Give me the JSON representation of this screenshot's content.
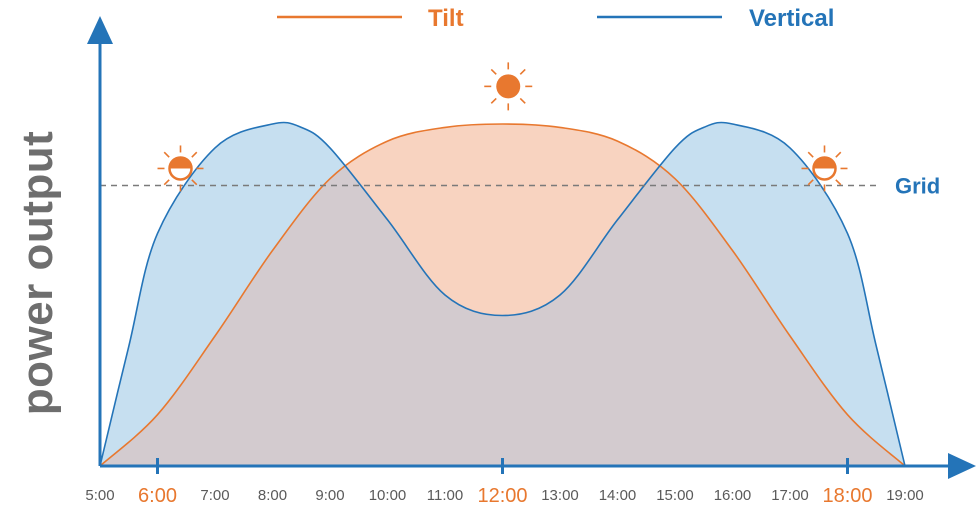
{
  "chart_data": {
    "type": "area",
    "title": "",
    "xlabel": "",
    "ylabel": "power output",
    "x_ticks": [
      "5:00",
      "6:00",
      "7:00",
      "8:00",
      "9:00",
      "10:00",
      "11:00",
      "12:00",
      "13:00",
      "14:00",
      "15:00",
      "16:00",
      "17:00",
      "18:00",
      "19:00"
    ],
    "highlighted_ticks": [
      "6:00",
      "12:00",
      "18:00"
    ],
    "xlim": [
      5,
      19
    ],
    "ylim": [
      0,
      1
    ],
    "grid": false,
    "legend_position": "top",
    "series": [
      {
        "name": "Tilt",
        "color": "#e8782f",
        "fill": "#f8d3c0",
        "x": [
          5,
          6,
          7,
          8,
          9,
          10,
          11,
          12,
          13,
          14,
          15,
          16,
          17,
          18,
          19
        ],
        "values": [
          0,
          0.15,
          0.38,
          0.63,
          0.84,
          0.95,
          0.99,
          1.0,
          0.99,
          0.95,
          0.84,
          0.63,
          0.38,
          0.15,
          0
        ]
      },
      {
        "name": "Vertical",
        "color": "#2474b8",
        "fill": "#c6dff0",
        "x": [
          5,
          5.5,
          6,
          7,
          8,
          8.5,
          9,
          10,
          11,
          12,
          13,
          14,
          15,
          15.5,
          16,
          17,
          18,
          18.5,
          19
        ],
        "values": [
          0,
          0.35,
          0.68,
          0.93,
          1.0,
          0.99,
          0.93,
          0.72,
          0.5,
          0.44,
          0.5,
          0.72,
          0.93,
          0.99,
          1.0,
          0.93,
          0.68,
          0.35,
          0
        ]
      }
    ],
    "reference_lines": [
      {
        "name": "Grid",
        "value": 0.82,
        "style": "dashed",
        "color": "#7a7a7a"
      }
    ],
    "annotations": [
      {
        "type": "sun-icon",
        "style": "half",
        "x": 6.4,
        "y": 0.87
      },
      {
        "type": "sun-icon",
        "style": "full",
        "x": 12.1,
        "y": 1.11
      },
      {
        "type": "sun-icon",
        "style": "half",
        "x": 17.6,
        "y": 0.87
      }
    ]
  },
  "colors": {
    "axis": "#2474b8",
    "tick_label": "#5a5a5a",
    "highlight_tick": "#e8782f",
    "overlap": "#d3cbcf"
  }
}
